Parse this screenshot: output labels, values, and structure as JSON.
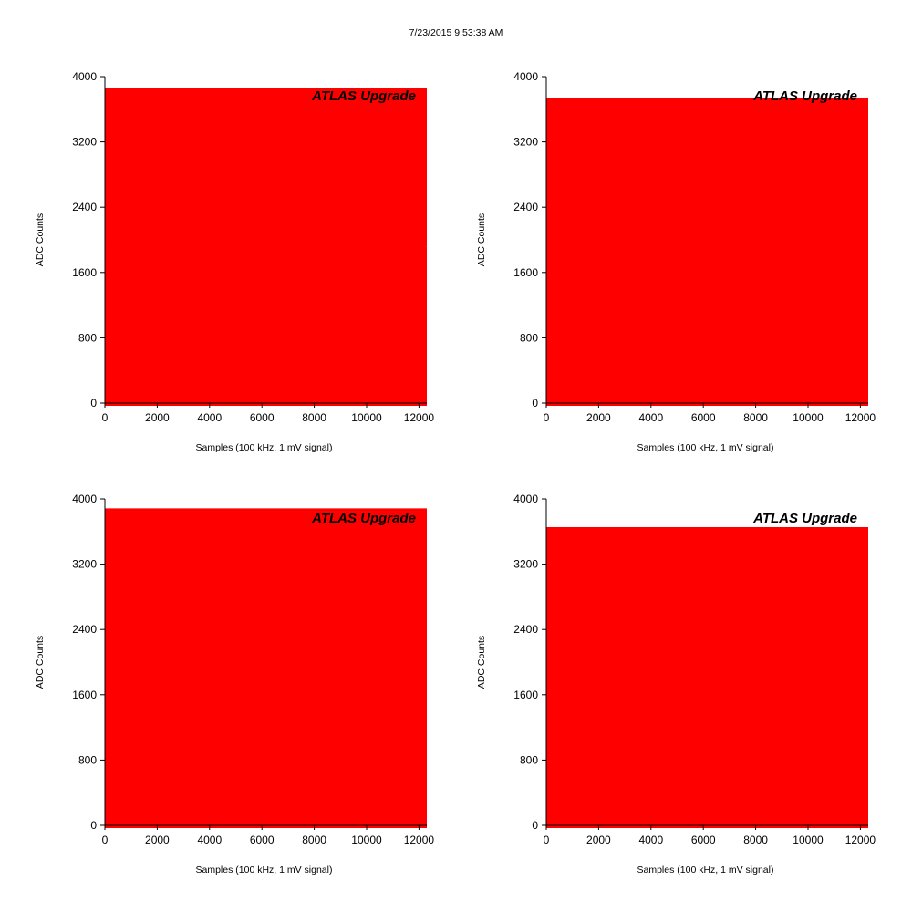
{
  "timestamp": "7/23/2015 9:53:38 AM",
  "colors": {
    "trace": "#ff0000",
    "axis": "#000000",
    "background": "#ffffff"
  },
  "chart_data": [
    {
      "type": "line",
      "watermark": "ATLAS Upgrade",
      "xlabel": "Samples (100 kHz, 1 mV signal)",
      "ylabel": "ADC Counts",
      "xlim": [
        0,
        12300
      ],
      "ylim": [
        0,
        4000
      ],
      "xticks": [
        0,
        2000,
        4000,
        6000,
        8000,
        10000,
        12000
      ],
      "yticks": [
        0,
        800,
        1600,
        2400,
        3200,
        4000
      ],
      "grid": false,
      "series": [
        {
          "waveform": "triangle",
          "min": 0,
          "max": 3830,
          "period": 600,
          "phases": [
            0,
            0.25,
            0.5,
            0.75
          ]
        }
      ]
    },
    {
      "type": "line",
      "watermark": "ATLAS Upgrade",
      "xlabel": "Samples (100 kHz, 1 mV signal)",
      "ylabel": "ADC Counts",
      "xlim": [
        0,
        12300
      ],
      "ylim": [
        0,
        4000
      ],
      "xticks": [
        0,
        2000,
        4000,
        6000,
        8000,
        10000,
        12000
      ],
      "yticks": [
        0,
        800,
        1600,
        2400,
        3200,
        4000
      ],
      "grid": false,
      "series": [
        {
          "waveform": "triangle",
          "min": 0,
          "max": 3710,
          "period": 600,
          "phases": [
            0,
            0.25,
            0.5,
            0.75
          ]
        }
      ]
    },
    {
      "type": "line",
      "watermark": "ATLAS Upgrade",
      "xlabel": "Samples (100 kHz, 1 mV signal)",
      "ylabel": "ADC Counts",
      "xlim": [
        0,
        12300
      ],
      "ylim": [
        0,
        4000
      ],
      "xticks": [
        0,
        2000,
        4000,
        6000,
        8000,
        10000,
        12000
      ],
      "yticks": [
        0,
        800,
        1600,
        2400,
        3200,
        4000
      ],
      "grid": false,
      "series": [
        {
          "waveform": "triangle",
          "min": 0,
          "max": 3850,
          "period": 600,
          "phases": [
            0,
            0.25,
            0.5,
            0.75
          ]
        }
      ]
    },
    {
      "type": "line",
      "watermark": "ATLAS Upgrade",
      "xlabel": "Samples (100 kHz, 1 mV signal)",
      "ylabel": "ADC Counts",
      "xlim": [
        0,
        12300
      ],
      "ylim": [
        0,
        4000
      ],
      "xticks": [
        0,
        2000,
        4000,
        6000,
        8000,
        10000,
        12000
      ],
      "yticks": [
        0,
        800,
        1600,
        2400,
        3200,
        4000
      ],
      "grid": false,
      "series": [
        {
          "waveform": "triangle",
          "min": 0,
          "max": 3620,
          "period": 600,
          "phases": [
            0,
            0.25,
            0.5,
            0.75
          ]
        }
      ]
    }
  ]
}
